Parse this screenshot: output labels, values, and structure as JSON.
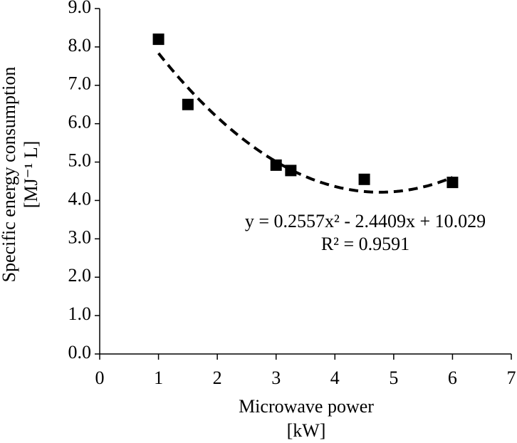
{
  "chart_data": {
    "type": "scatter",
    "xlabel": [
      "Microwave power",
      "[kW]"
    ],
    "ylabel": [
      "Specific energy consumption",
      "[MJ⁻¹ L]"
    ],
    "x": [
      1,
      1.5,
      3,
      3.25,
      4.5,
      6
    ],
    "values": [
      8.2,
      6.5,
      4.92,
      4.78,
      4.55,
      4.47
    ],
    "color": "#000000",
    "trendline": "polynomial",
    "annotations": [
      "y = 0.2557x² - 2.4409x + 10.029",
      "R² = 0.9591"
    ],
    "xlim": [
      0,
      7
    ],
    "xticks": [
      0,
      1,
      2,
      3,
      4,
      5,
      6,
      7
    ],
    "ylim": [
      0,
      9
    ],
    "yticks": [
      {
        "value": 0,
        "label": "0.0"
      },
      {
        "value": 1,
        "label": "1.0"
      },
      {
        "value": 2,
        "label": "2.0"
      },
      {
        "value": 3,
        "label": "3.0"
      },
      {
        "value": 4,
        "label": "4.0"
      },
      {
        "value": 5,
        "label": "5.0"
      },
      {
        "value": 6,
        "label": "6.0"
      },
      {
        "value": 7,
        "label": "7.0"
      },
      {
        "value": 8,
        "label": "8.0"
      },
      {
        "value": 9,
        "label": "9.0"
      }
    ],
    "grid": false
  }
}
